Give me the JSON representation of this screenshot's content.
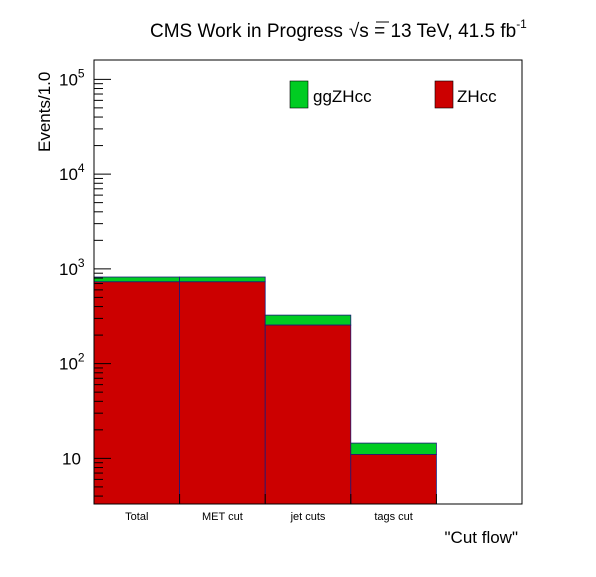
{
  "header": {
    "title": "CMS Work in Progress",
    "energy_prefix": "√",
    "energy_var": "s",
    "energy_text": " = 13 TeV, 41.5 fb",
    "lumi_exponent": "-1"
  },
  "chart_data": {
    "type": "bar",
    "stacked": true,
    "scale": "log",
    "xlabel": "\"Cut flow\"",
    "ylabel": "Events/1.0",
    "categories": [
      "Total",
      "MET cut",
      "jet cuts",
      "tags cut",
      ""
    ],
    "ylim": [
      3.3,
      160000
    ],
    "y_ticks": [
      {
        "value": 10,
        "base": "10",
        "exp": ""
      },
      {
        "value": 100,
        "base": "10",
        "exp": "2"
      },
      {
        "value": 1000,
        "base": "10",
        "exp": "3"
      },
      {
        "value": 10000,
        "base": "10",
        "exp": "4"
      },
      {
        "value": 100000,
        "base": "10",
        "exp": "5"
      }
    ],
    "series": [
      {
        "name": "ZHcc",
        "color": "#cc0000",
        "values": [
          730,
          730,
          255,
          11,
          0
        ]
      },
      {
        "name": "ggZHcc",
        "color": "#00cc22",
        "values": [
          90,
          90,
          70,
          3.5,
          0
        ]
      }
    ],
    "legend_position": "top-right",
    "grid": false
  }
}
